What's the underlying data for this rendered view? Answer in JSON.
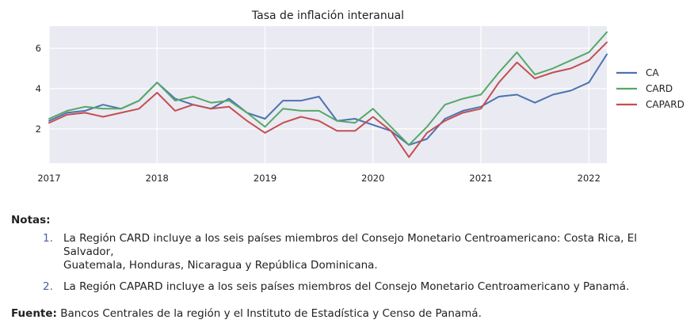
{
  "chart_data": {
    "type": "line",
    "title": "Tasa de inflación interanual",
    "xlabel": "",
    "ylabel": "",
    "x_ticks": [
      "2017",
      "2018",
      "2019",
      "2020",
      "2021",
      "2022"
    ],
    "x_range": [
      "2017-01",
      "2022-03"
    ],
    "y_ticks": [
      2,
      4,
      6
    ],
    "ylim": [
      0.3,
      7.1
    ],
    "grid": true,
    "legend_position": "right",
    "x": [
      "2017-01",
      "2017-03",
      "2017-05",
      "2017-07",
      "2017-09",
      "2017-11",
      "2018-01",
      "2018-03",
      "2018-05",
      "2018-07",
      "2018-09",
      "2018-11",
      "2019-01",
      "2019-03",
      "2019-05",
      "2019-07",
      "2019-09",
      "2019-11",
      "2020-01",
      "2020-03",
      "2020-05",
      "2020-07",
      "2020-09",
      "2020-11",
      "2021-01",
      "2021-03",
      "2021-05",
      "2021-07",
      "2021-09",
      "2021-11",
      "2022-01",
      "2022-03"
    ],
    "series": [
      {
        "name": "CA",
        "color": "#4c72b0",
        "values": [
          2.4,
          2.8,
          2.9,
          3.2,
          3.0,
          3.4,
          4.3,
          3.5,
          3.2,
          3.0,
          3.5,
          2.8,
          2.5,
          3.4,
          3.4,
          3.6,
          2.4,
          2.5,
          2.2,
          1.9,
          1.2,
          1.5,
          2.5,
          2.9,
          3.1,
          3.6,
          3.7,
          3.3,
          3.7,
          3.9,
          4.3,
          5.7
        ]
      },
      {
        "name": "CARD",
        "color": "#55a868",
        "values": [
          2.5,
          2.9,
          3.1,
          3.0,
          3.0,
          3.4,
          4.3,
          3.4,
          3.6,
          3.3,
          3.4,
          2.8,
          2.1,
          3.0,
          2.9,
          2.9,
          2.4,
          2.3,
          3.0,
          2.1,
          1.2,
          2.1,
          3.2,
          3.5,
          3.7,
          4.8,
          5.8,
          4.7,
          5.0,
          5.4,
          5.8,
          6.8
        ]
      },
      {
        "name": "CAPARD",
        "color": "#c44e52",
        "values": [
          2.3,
          2.7,
          2.8,
          2.6,
          2.8,
          3.0,
          3.8,
          2.9,
          3.2,
          3.0,
          3.1,
          2.4,
          1.8,
          2.3,
          2.6,
          2.4,
          1.9,
          1.9,
          2.6,
          1.9,
          0.6,
          1.8,
          2.4,
          2.8,
          3.0,
          4.3,
          5.3,
          4.5,
          4.8,
          5.0,
          5.4,
          6.3
        ]
      }
    ]
  },
  "notes": {
    "title": "Notas:",
    "items": [
      {
        "number": "1.",
        "text": "La Región CARD incluye a los seis países miembros del Consejo Monetario Centroamericano: Costa Rica, El Salvador,",
        "text2": "Guatemala, Honduras, Nicaragua y República Dominicana."
      },
      {
        "number": "2.",
        "text": "La Región CAPARD incluye a los seis países miembros del Consejo Monetario Centroamericano y Panamá.",
        "text2": ""
      }
    ]
  },
  "source": {
    "label": "Fuente:",
    "text": "Bancos Centrales de la región y el Instituto de Estadística y Censo de Panamá."
  }
}
